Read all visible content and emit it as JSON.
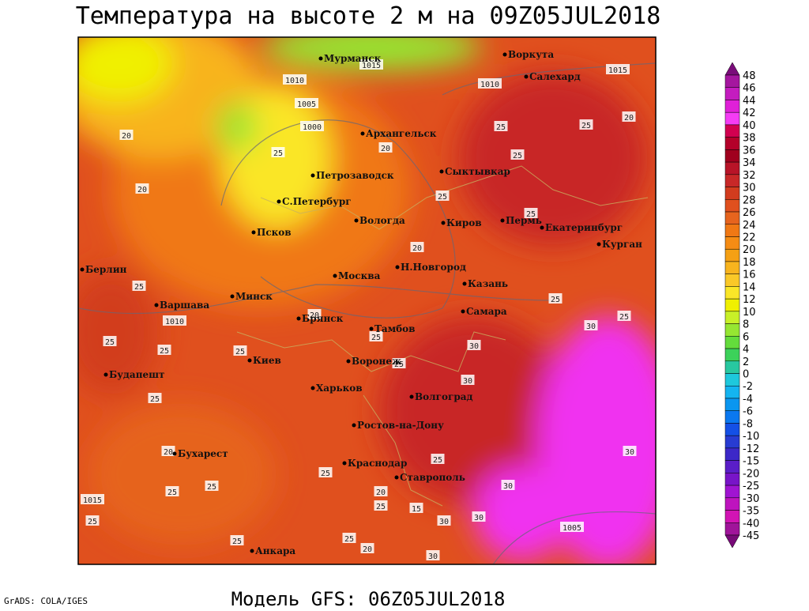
{
  "title": "Температура на высоте 2 м на 09Z05JUL2018",
  "footer": "Модель GFS: 06Z05JUL2018",
  "credit": "GrADS: COLA/IGES",
  "cities": [
    "Мурманск",
    "Воркута",
    "Салехард",
    "Архангельск",
    "Сыктывкар",
    "Петрозаводск",
    "С.Петербург",
    "Вологда",
    "Киров",
    "Пермь",
    "Екатеринбург",
    "Курган",
    "Псков",
    "Берлин",
    "Москва",
    "Н.Новгород",
    "Казань",
    "Минск",
    "Варшава",
    "Брянск",
    "Самара",
    "Тамбов",
    "Киев",
    "Воронеж",
    "Будапешт",
    "Харьков",
    "Волгоград",
    "Ростов-на-Дону",
    "Бухарест",
    "Краснодар",
    "Ставрополь",
    "Анкара"
  ],
  "contour_labels": [
    "1010",
    "1005",
    "1000",
    "1015",
    "1010",
    "1015",
    "20",
    "20",
    "25",
    "1010",
    "25",
    "25",
    "25",
    "25",
    "20",
    "25",
    "25",
    "1015",
    "25",
    "25",
    "20",
    "25",
    "20",
    "25",
    "25",
    "20",
    "25",
    "25",
    "25",
    "20",
    "25",
    "30",
    "25",
    "30",
    "30",
    "25",
    "30",
    "25",
    "15",
    "30",
    "30",
    "1005",
    "30",
    "30",
    "25",
    "20",
    "25",
    "25",
    "20",
    "25"
  ],
  "colorbar": {
    "labels": [
      48,
      46,
      44,
      42,
      40,
      38,
      36,
      34,
      32,
      30,
      28,
      26,
      24,
      22,
      20,
      18,
      16,
      14,
      12,
      10,
      8,
      6,
      4,
      2,
      0,
      -2,
      -4,
      -6,
      -8,
      -10,
      -12,
      -15,
      -20,
      -25,
      -30,
      -35,
      -40,
      -45
    ],
    "colors": [
      "#7a0c7a",
      "#a5169f",
      "#c41cbf",
      "#e020d8",
      "#f53cf5",
      "#d20050",
      "#b4002a",
      "#a0001e",
      "#b81428",
      "#c82828",
      "#d23c1e",
      "#e0501e",
      "#e6641e",
      "#f07814",
      "#f58c14",
      "#f5a014",
      "#f8b41e",
      "#fac828",
      "#fae628",
      "#f0f000",
      "#c8f028",
      "#96e632",
      "#64dc3c",
      "#3cd25a",
      "#28c8a0",
      "#1ec8dc",
      "#14b4f0",
      "#0a96f0",
      "#0a78f0",
      "#1450e6",
      "#283cd2",
      "#3c28c8",
      "#5a1ec8",
      "#7814c8",
      "#a014d2",
      "#be14be",
      "#d214b4",
      "#a0149a",
      "#780a78"
    ]
  }
}
